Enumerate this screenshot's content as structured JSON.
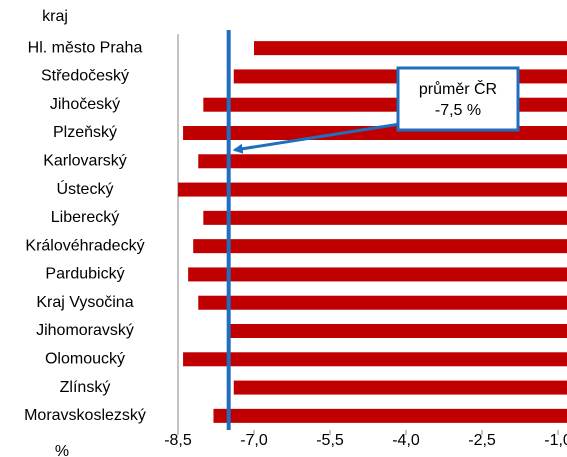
{
  "chart_data": {
    "type": "bar",
    "orientation": "horizontal",
    "y_label": "kraj",
    "x_label": "%",
    "categories": [
      "Hl. město Praha",
      "Středočeský",
      "Jihočeský",
      "Plzeňský",
      "Karlovarský",
      "Ústecký",
      "Liberecký",
      "Královéhradecký",
      "Pardubický",
      "Kraj Vysočina",
      "Jihomoravský",
      "Olomoucký",
      "Zlínský",
      "Moravskoslezský"
    ],
    "values": [
      -7.0,
      -7.4,
      -8.0,
      -8.4,
      -8.1,
      -8.5,
      -8.0,
      -8.2,
      -8.3,
      -8.1,
      -7.5,
      -8.4,
      -7.4,
      -7.8
    ],
    "color": "#c00000",
    "xlim": [
      -8.5,
      -0.3
    ],
    "xticks": [
      {
        "value": -8.5,
        "label": "-8,5"
      },
      {
        "value": -7.0,
        "label": "-7,0"
      },
      {
        "value": -5.5,
        "label": "-5,5"
      },
      {
        "value": -4.0,
        "label": "-4,0"
      },
      {
        "value": -2.5,
        "label": "-2,5"
      },
      {
        "value": -1.0,
        "label": "-1,0"
      }
    ],
    "reference_line": {
      "name": "průměr ČR",
      "value": -7.5,
      "label": "-7,5 %",
      "color": "#1f6fc0"
    }
  }
}
